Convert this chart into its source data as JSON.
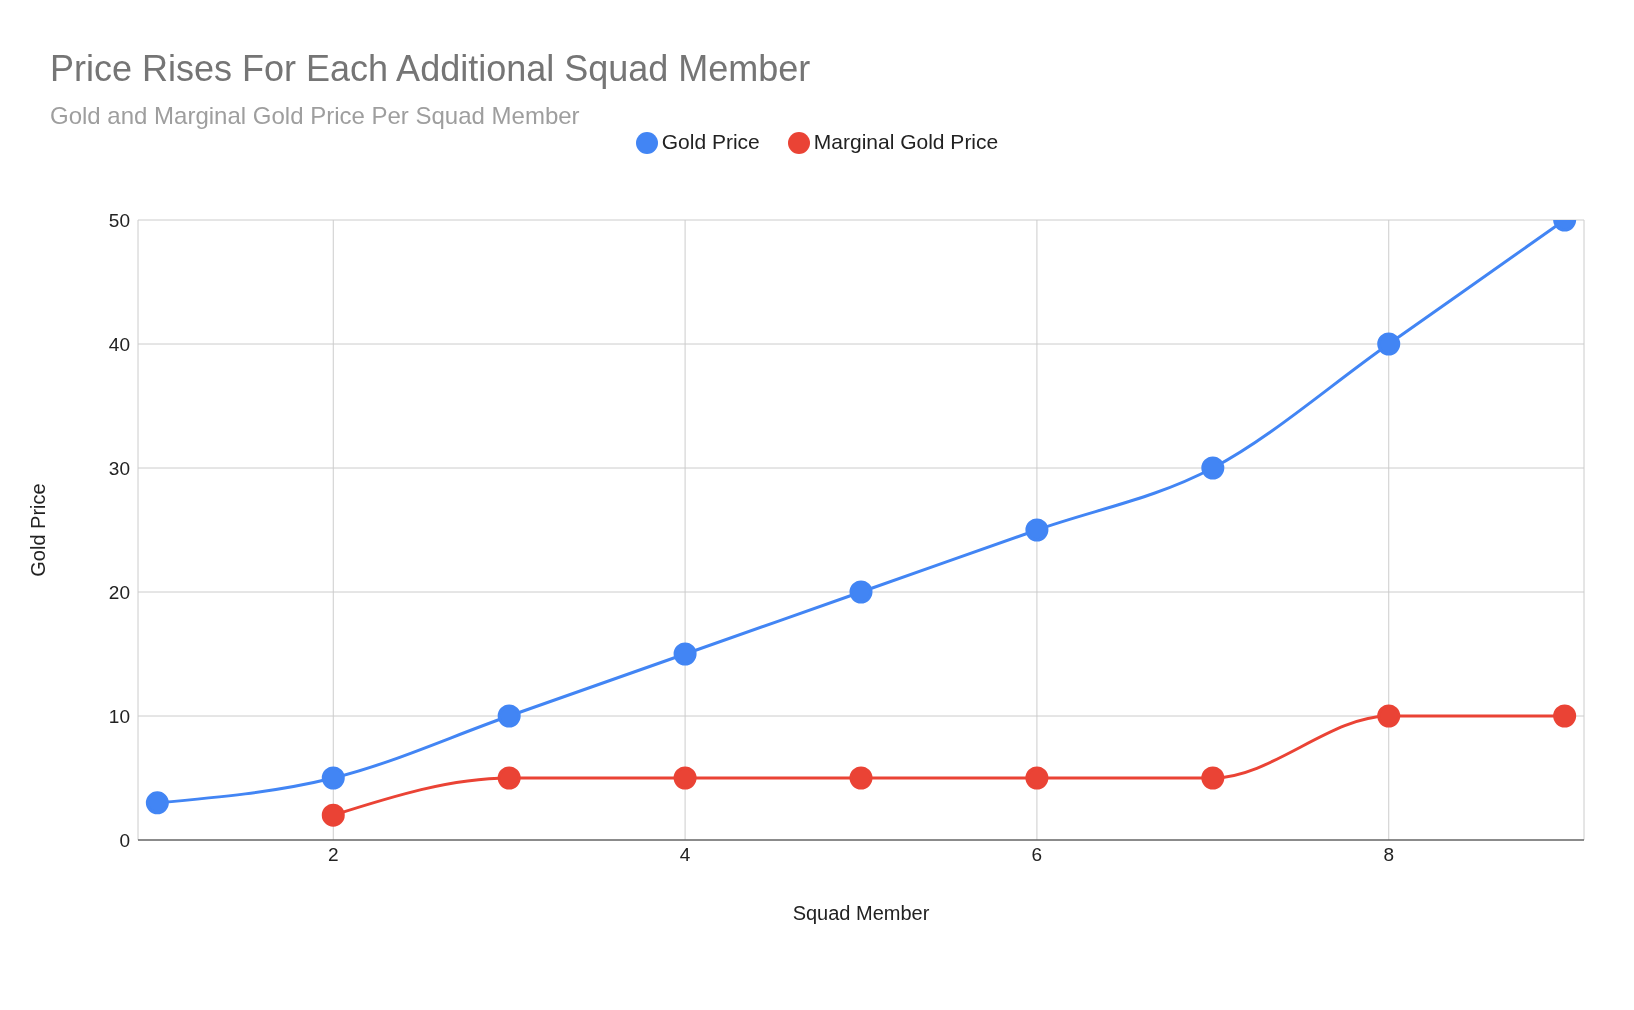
{
  "chart_data": {
    "type": "line",
    "title": "Price Rises For Each Additional Squad Member",
    "subtitle": "Gold and Marginal Gold Price Per Squad Member",
    "xlabel": "Squad Member",
    "ylabel": "Gold Price",
    "series": [
      {
        "name": "Gold Price",
        "color": "#4285f4",
        "x": [
          1,
          2,
          3,
          4,
          5,
          6,
          7,
          8,
          9
        ],
        "values": [
          3,
          5,
          10,
          15,
          20,
          25,
          30,
          40,
          50
        ]
      },
      {
        "name": "Marginal Gold Price",
        "color": "#ea4335",
        "x": [
          2,
          3,
          4,
          5,
          6,
          7,
          8,
          9
        ],
        "values": [
          2,
          5,
          5,
          5,
          5,
          5,
          10,
          10
        ]
      }
    ],
    "xlim": [
      0.89,
      9.11
    ],
    "xticks": [
      2,
      4,
      6,
      8
    ],
    "ylim": [
      0,
      50
    ],
    "yticks": [
      0,
      10,
      20,
      30,
      40,
      50
    ],
    "grid": true,
    "legend": "top",
    "marker": "circle",
    "line_style": "solid"
  }
}
